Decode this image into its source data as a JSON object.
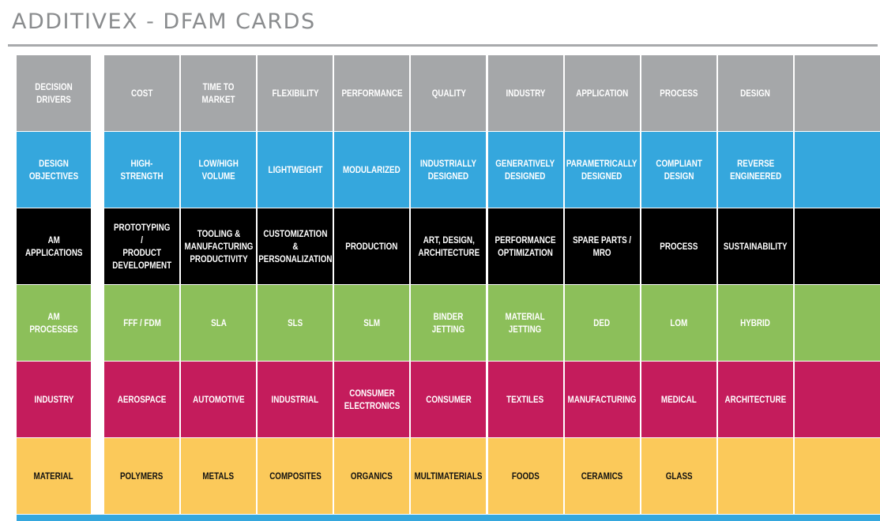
{
  "header": {
    "title": "ADDITIVEX - DFAM CARDS"
  },
  "rows": [
    {
      "color": "#a5a7a9",
      "label": "DECISION\nDRIVERS",
      "cards": [
        "COST",
        "TIME TO MARKET",
        "FLEXIBILITY",
        "PERFORMANCE",
        "QUALITY",
        "INDUSTRY",
        "APPLICATION",
        "PROCESS",
        "DESIGN",
        ""
      ]
    },
    {
      "color": "#35a7dd",
      "label": "DESIGN\nOBJECTIVES",
      "cards": [
        "HIGH-STRENGTH",
        "LOW/HIGH\nVOLUME",
        "LIGHTWEIGHT",
        "MODULARIZED",
        "INDUSTRIALLY\nDESIGNED",
        "GENERATIVELY\nDESIGNED",
        "PARAMETRICALLY\nDESIGNED",
        "COMPLIANT\nDESIGN",
        "REVERSE\nENGINEERED",
        ""
      ]
    },
    {
      "color": "#000000",
      "label": "AM\nAPPLICATIONS",
      "cards": [
        "PROTOTYPING /\nPRODUCT\nDEVELOPMENT",
        "TOOLING &\nMANUFACTURING\nPRODUCTIVITY",
        "CUSTOMIZATION\n&\nPERSONALIZATION",
        "PRODUCTION",
        "ART, DESIGN,\nARCHITECTURE",
        "PERFORMANCE\nOPTIMIZATION",
        "SPARE PARTS /\nMRO",
        "PROCESS",
        "SUSTAINABILITY",
        ""
      ]
    },
    {
      "color": "#8cbf5a",
      "label": "AM PROCESSES",
      "cards": [
        "FFF / FDM",
        "SLA",
        "SLS",
        "SLM",
        "BINDER JETTING",
        "MATERIAL\nJETTING",
        "DED",
        "LOM",
        "HYBRID",
        ""
      ]
    },
    {
      "color": "#c41c5c",
      "label": "INDUSTRY",
      "cards": [
        "AEROSPACE",
        "AUTOMOTIVE",
        "INDUSTRIAL",
        "CONSUMER\nELECTRONICS",
        "CONSUMER",
        "TEXTILES",
        "MANUFACTURING",
        "MEDICAL",
        "ARCHITECTURE",
        ""
      ]
    },
    {
      "color": "#fbc95a",
      "label": "MATERIAL",
      "cards": [
        "POLYMERS",
        "METALS",
        "COMPOSITES",
        "ORGANICS",
        "MULTIMATERIALS",
        "FOODS",
        "CERAMICS",
        "GLASS",
        "",
        ""
      ]
    }
  ],
  "bottom_strip_color": "#35a7dd"
}
